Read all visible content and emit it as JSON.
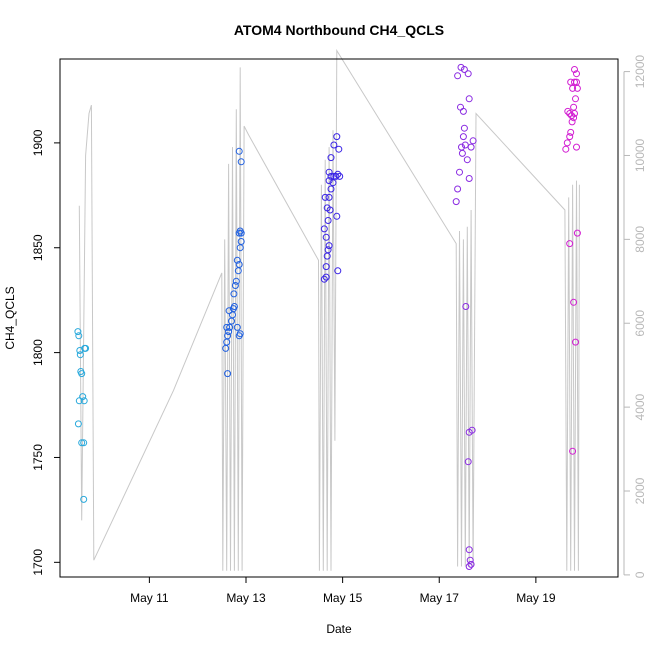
{
  "chart_data": {
    "type": "scatter",
    "title": "ATOM4 Northbound CH4_QCLS",
    "xlabel": "Date",
    "ylabel": "CH4_QCLS",
    "x_unit": "day of May",
    "xlim": [
      9.15,
      20.7
    ],
    "ylim": [
      1693,
      1940
    ],
    "y2lim": [
      -50,
      12300
    ],
    "x_ticks": [
      {
        "value": 11,
        "label": "May 11"
      },
      {
        "value": 13,
        "label": "May 13"
      },
      {
        "value": 15,
        "label": "May 15"
      },
      {
        "value": 17,
        "label": "May 17"
      },
      {
        "value": 19,
        "label": "May 19"
      }
    ],
    "y_ticks": [
      1700,
      1750,
      1800,
      1850,
      1900
    ],
    "y2_ticks": [
      0,
      2000,
      4000,
      6000,
      8000,
      10000,
      12000
    ],
    "colors": {
      "altitude_line": "#c8c8c8",
      "point_colors": [
        "#29a9dc",
        "#2060e0",
        "#3a24e6",
        "#8a2be2",
        "#d21ed2"
      ],
      "right_axis": "#b8b8b8",
      "frame": "#000000"
    },
    "secondary_series": {
      "name": "",
      "style": "line",
      "points": [
        [
          9.55,
          8800
        ],
        [
          9.6,
          1300
        ],
        [
          9.68,
          10000
        ],
        [
          9.75,
          11000
        ],
        [
          9.8,
          11200
        ],
        [
          9.85,
          350
        ],
        [
          11.5,
          4400
        ],
        [
          12.5,
          7200
        ],
        [
          12.52,
          100
        ],
        [
          12.56,
          8000
        ],
        [
          12.6,
          100
        ],
        [
          12.64,
          9800
        ],
        [
          12.68,
          100
        ],
        [
          12.72,
          10200
        ],
        [
          12.76,
          100
        ],
        [
          12.8,
          11100
        ],
        [
          12.84,
          100
        ],
        [
          12.88,
          12100
        ],
        [
          12.92,
          100
        ],
        [
          12.96,
          10700
        ],
        [
          13.05,
          10500
        ],
        [
          14.5,
          7500
        ],
        [
          14.52,
          100
        ],
        [
          14.56,
          9300
        ],
        [
          14.6,
          100
        ],
        [
          14.64,
          9900
        ],
        [
          14.68,
          100
        ],
        [
          14.72,
          10200
        ],
        [
          14.76,
          100
        ],
        [
          14.8,
          10600
        ],
        [
          14.84,
          3200
        ],
        [
          14.88,
          12500
        ],
        [
          17.35,
          7900
        ],
        [
          17.38,
          200
        ],
        [
          17.42,
          8200
        ],
        [
          17.46,
          200
        ],
        [
          17.5,
          8000
        ],
        [
          17.54,
          200
        ],
        [
          17.58,
          8300
        ],
        [
          17.62,
          200
        ],
        [
          17.66,
          8700
        ],
        [
          17.7,
          200
        ],
        [
          17.76,
          11000
        ],
        [
          19.6,
          8700
        ],
        [
          19.64,
          100
        ],
        [
          19.68,
          9000
        ],
        [
          19.72,
          100
        ],
        [
          19.76,
          9300
        ],
        [
          19.8,
          100
        ],
        [
          19.84,
          9400
        ],
        [
          19.88,
          100
        ],
        [
          19.9,
          9300
        ]
      ]
    },
    "series": [
      {
        "name": "",
        "color": "#29a9dc",
        "points": [
          [
            9.52,
            1810
          ],
          [
            9.54,
            1808
          ],
          [
            9.56,
            1801
          ],
          [
            9.57,
            1799
          ],
          [
            9.58,
            1791
          ],
          [
            9.6,
            1790
          ],
          [
            9.55,
            1777
          ],
          [
            9.62,
            1779
          ],
          [
            9.65,
            1777
          ],
          [
            9.53,
            1766
          ],
          [
            9.6,
            1757
          ],
          [
            9.64,
            1757
          ],
          [
            9.66,
            1802
          ],
          [
            9.68,
            1802
          ],
          [
            9.64,
            1730
          ]
        ]
      },
      {
        "name": "",
        "color": "#2060e0",
        "points": [
          [
            12.62,
            1790
          ],
          [
            12.58,
            1802
          ],
          [
            12.6,
            1805
          ],
          [
            12.62,
            1808
          ],
          [
            12.64,
            1810
          ],
          [
            12.66,
            1812
          ],
          [
            12.7,
            1815
          ],
          [
            12.72,
            1818
          ],
          [
            12.74,
            1821
          ],
          [
            12.76,
            1822
          ],
          [
            12.6,
            1812
          ],
          [
            12.65,
            1820
          ],
          [
            12.75,
            1828
          ],
          [
            12.78,
            1832
          ],
          [
            12.8,
            1834
          ],
          [
            12.84,
            1839
          ],
          [
            12.82,
            1844
          ],
          [
            12.86,
            1842
          ],
          [
            12.88,
            1850
          ],
          [
            12.9,
            1853
          ],
          [
            12.86,
            1857
          ],
          [
            12.88,
            1858
          ],
          [
            12.9,
            1857
          ],
          [
            12.82,
            1812
          ],
          [
            12.86,
            1808
          ],
          [
            12.88,
            1809
          ],
          [
            12.86,
            1896
          ],
          [
            12.9,
            1891
          ]
        ]
      },
      {
        "name": "",
        "color": "#3a24e6",
        "points": [
          [
            14.62,
            1835
          ],
          [
            14.66,
            1836
          ],
          [
            14.66,
            1841
          ],
          [
            14.68,
            1846
          ],
          [
            14.7,
            1849
          ],
          [
            14.72,
            1851
          ],
          [
            14.62,
            1859
          ],
          [
            14.66,
            1855
          ],
          [
            14.7,
            1863
          ],
          [
            14.74,
            1868
          ],
          [
            14.64,
            1874
          ],
          [
            14.68,
            1869
          ],
          [
            14.72,
            1874
          ],
          [
            14.76,
            1878
          ],
          [
            14.8,
            1881
          ],
          [
            14.72,
            1882
          ],
          [
            14.76,
            1884
          ],
          [
            14.82,
            1884
          ],
          [
            14.86,
            1884
          ],
          [
            14.9,
            1885
          ],
          [
            14.94,
            1884
          ],
          [
            14.72,
            1886
          ],
          [
            14.76,
            1893
          ],
          [
            14.82,
            1899
          ],
          [
            14.88,
            1903
          ],
          [
            14.88,
            1865
          ],
          [
            14.9,
            1839
          ],
          [
            14.92,
            1897
          ]
        ]
      },
      {
        "name": "",
        "color": "#8a2be2",
        "points": [
          [
            17.35,
            1872
          ],
          [
            17.38,
            1878
          ],
          [
            17.42,
            1886
          ],
          [
            17.46,
            1898
          ],
          [
            17.5,
            1903
          ],
          [
            17.52,
            1907
          ],
          [
            17.48,
            1895
          ],
          [
            17.54,
            1899
          ],
          [
            17.58,
            1892
          ],
          [
            17.62,
            1883
          ],
          [
            17.66,
            1898
          ],
          [
            17.7,
            1901
          ],
          [
            17.44,
            1917
          ],
          [
            17.5,
            1915
          ],
          [
            17.62,
            1921
          ],
          [
            17.38,
            1932
          ],
          [
            17.45,
            1936
          ],
          [
            17.52,
            1935
          ],
          [
            17.6,
            1933
          ],
          [
            17.55,
            1822
          ],
          [
            17.6,
            1748
          ],
          [
            17.62,
            1762
          ],
          [
            17.68,
            1763
          ],
          [
            17.62,
            1706
          ],
          [
            17.64,
            1701
          ],
          [
            17.66,
            1699
          ],
          [
            17.62,
            1698
          ]
        ]
      },
      {
        "name": "",
        "color": "#d21ed2",
        "points": [
          [
            19.62,
            1897
          ],
          [
            19.65,
            1900
          ],
          [
            19.7,
            1903
          ],
          [
            19.72,
            1905
          ],
          [
            19.75,
            1910
          ],
          [
            19.78,
            1912
          ],
          [
            19.8,
            1914
          ],
          [
            19.66,
            1915
          ],
          [
            19.7,
            1914
          ],
          [
            19.74,
            1913
          ],
          [
            19.78,
            1917
          ],
          [
            19.82,
            1921
          ],
          [
            19.86,
            1926
          ],
          [
            19.72,
            1929
          ],
          [
            19.76,
            1926
          ],
          [
            19.8,
            1929
          ],
          [
            19.84,
            1929
          ],
          [
            19.8,
            1935
          ],
          [
            19.84,
            1933
          ],
          [
            19.7,
            1852
          ],
          [
            19.78,
            1824
          ],
          [
            19.82,
            1805
          ],
          [
            19.86,
            1857
          ],
          [
            19.76,
            1753
          ],
          [
            19.84,
            1898
          ]
        ]
      }
    ]
  }
}
